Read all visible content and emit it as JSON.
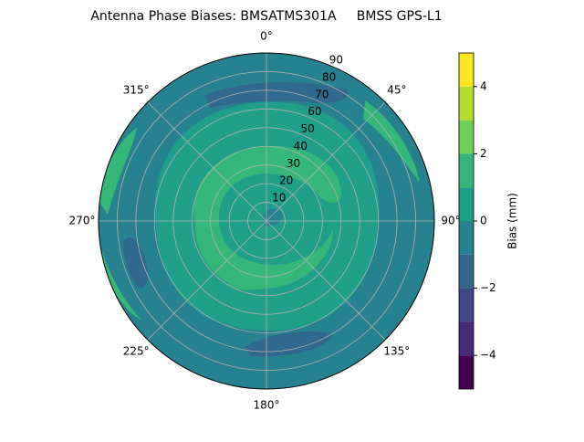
{
  "chart_data": {
    "type": "polar_contour",
    "title": "Antenna Phase Biases: BMSATMS301A     BMSS GPS-L1",
    "thetaticks": [
      {
        "value": 0,
        "label": "0°"
      },
      {
        "value": 45,
        "label": "45°"
      },
      {
        "value": 90,
        "label": "90°"
      },
      {
        "value": 135,
        "label": "135°"
      },
      {
        "value": 180,
        "label": "180°"
      },
      {
        "value": 225,
        "label": "225°"
      },
      {
        "value": 270,
        "label": "270°"
      },
      {
        "value": 315,
        "label": "315°"
      }
    ],
    "rlim": [
      0,
      90
    ],
    "rticks": [
      10,
      20,
      30,
      40,
      50,
      60,
      70,
      80,
      90
    ],
    "grid": true,
    "colorbar": {
      "label": "Bias (mm)",
      "lim": [
        -5,
        5
      ],
      "ticks": [
        {
          "value": -4,
          "label": "−4"
        },
        {
          "value": -2,
          "label": "−2"
        },
        0,
        2,
        4
      ],
      "levels": [
        -5,
        -4,
        -3,
        -2,
        -1,
        0,
        1,
        2,
        3,
        4,
        5
      ],
      "colors": [
        "#440154",
        "#482878",
        "#3e4989",
        "#31688e",
        "#26828e",
        "#1f9e89",
        "#35b779",
        "#6ece58",
        "#b5de2b",
        "#fde725"
      ]
    },
    "regions": [
      {
        "value": -0.5
      },
      {
        "value": 0.5
      },
      {
        "value": 1.5
      },
      {
        "value": 0.5
      },
      {
        "value": -0.5
      },
      {
        "value": -1.5
      },
      {
        "value": -1.5
      },
      {
        "value": -1.5
      },
      {
        "value": 1.5
      },
      {
        "value": 1.5
      },
      {
        "value": 1.5
      }
    ]
  }
}
